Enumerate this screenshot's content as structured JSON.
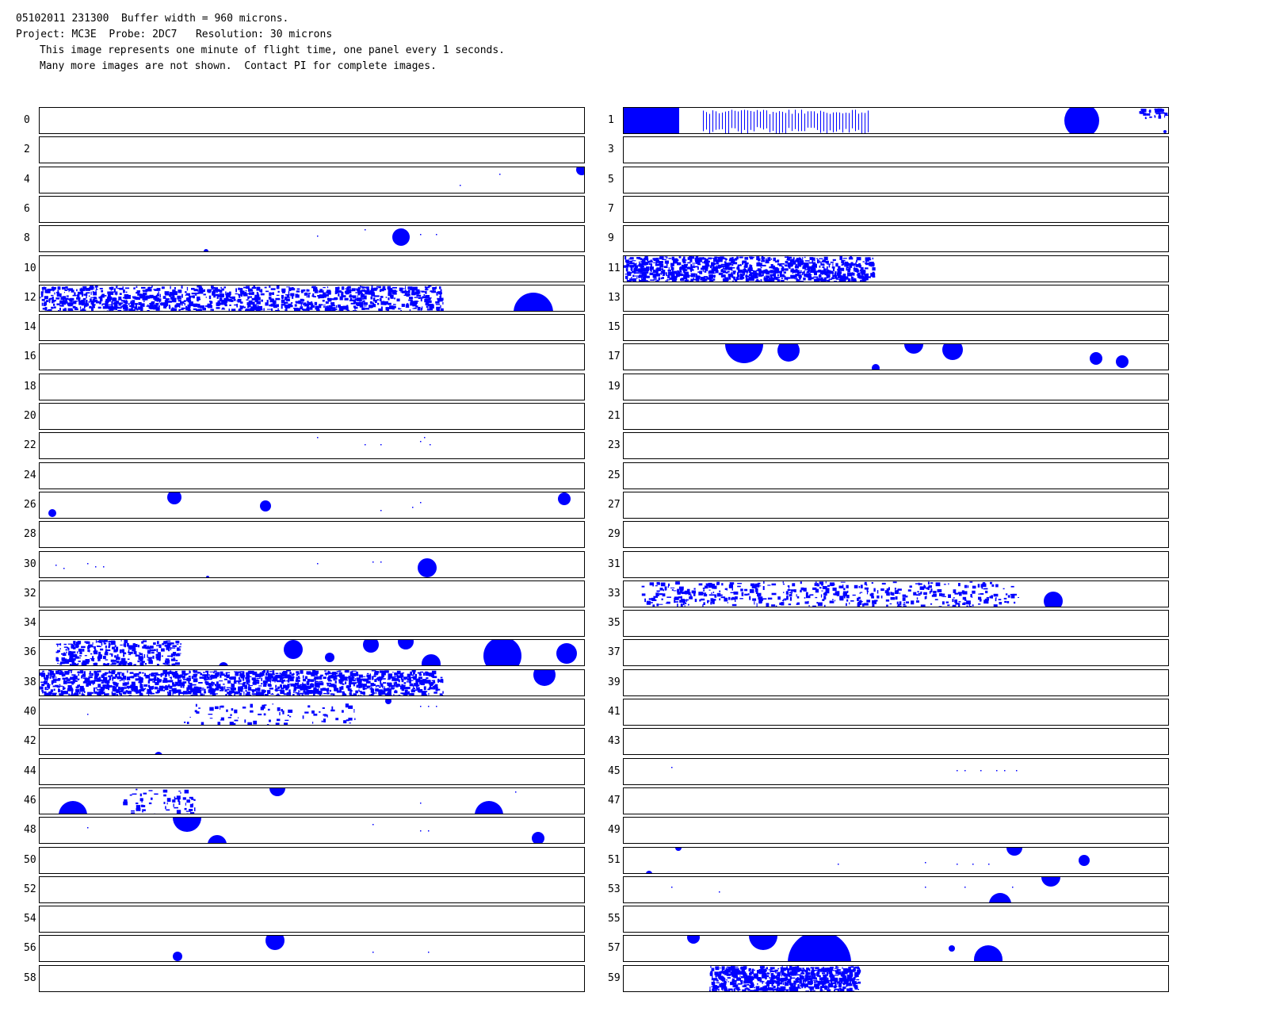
{
  "header": {
    "line1": "05102011 231300  Buffer width = 960 microns.",
    "line2": "Project: MC3E  Probe: 2DC7   Resolution: 30 microns",
    "line3": "This image represents one minute of flight time, one panel every 1 seconds.",
    "line4": "Many more images are not shown.  Contact PI for complete images."
  },
  "colors": {
    "particle": "#0000ff",
    "border": "#000000",
    "background": "#ffffff"
  },
  "panels": [
    {
      "label": "0",
      "content": "empty"
    },
    {
      "label": "1",
      "content": "particles"
    },
    {
      "label": "2",
      "content": "empty"
    },
    {
      "label": "3",
      "content": "empty"
    },
    {
      "label": "4",
      "content": "particles"
    },
    {
      "label": "5",
      "content": "empty"
    },
    {
      "label": "6",
      "content": "empty"
    },
    {
      "label": "7",
      "content": "empty"
    },
    {
      "label": "8",
      "content": "particles"
    },
    {
      "label": "9",
      "content": "empty"
    },
    {
      "label": "10",
      "content": "empty"
    },
    {
      "label": "11",
      "content": "particles"
    },
    {
      "label": "12",
      "content": "particles"
    },
    {
      "label": "13",
      "content": "empty"
    },
    {
      "label": "14",
      "content": "empty"
    },
    {
      "label": "15",
      "content": "empty"
    },
    {
      "label": "16",
      "content": "empty"
    },
    {
      "label": "17",
      "content": "particles"
    },
    {
      "label": "18",
      "content": "empty"
    },
    {
      "label": "19",
      "content": "empty"
    },
    {
      "label": "20",
      "content": "empty"
    },
    {
      "label": "21",
      "content": "empty"
    },
    {
      "label": "22",
      "content": "particles"
    },
    {
      "label": "23",
      "content": "empty"
    },
    {
      "label": "24",
      "content": "empty"
    },
    {
      "label": "25",
      "content": "empty"
    },
    {
      "label": "26",
      "content": "particles"
    },
    {
      "label": "27",
      "content": "empty"
    },
    {
      "label": "28",
      "content": "empty"
    },
    {
      "label": "29",
      "content": "empty"
    },
    {
      "label": "30",
      "content": "particles"
    },
    {
      "label": "31",
      "content": "empty"
    },
    {
      "label": "32",
      "content": "empty"
    },
    {
      "label": "33",
      "content": "particles"
    },
    {
      "label": "34",
      "content": "empty"
    },
    {
      "label": "35",
      "content": "empty"
    },
    {
      "label": "36",
      "content": "particles"
    },
    {
      "label": "37",
      "content": "empty"
    },
    {
      "label": "38",
      "content": "particles"
    },
    {
      "label": "39",
      "content": "empty"
    },
    {
      "label": "40",
      "content": "particles"
    },
    {
      "label": "41",
      "content": "empty"
    },
    {
      "label": "42",
      "content": "particles"
    },
    {
      "label": "43",
      "content": "empty"
    },
    {
      "label": "44",
      "content": "empty"
    },
    {
      "label": "45",
      "content": "particles"
    },
    {
      "label": "46",
      "content": "particles"
    },
    {
      "label": "47",
      "content": "empty"
    },
    {
      "label": "48",
      "content": "particles"
    },
    {
      "label": "49",
      "content": "empty"
    },
    {
      "label": "50",
      "content": "empty"
    },
    {
      "label": "51",
      "content": "particles"
    },
    {
      "label": "52",
      "content": "empty"
    },
    {
      "label": "53",
      "content": "particles"
    },
    {
      "label": "54",
      "content": "empty"
    },
    {
      "label": "55",
      "content": "empty"
    },
    {
      "label": "56",
      "content": "particles"
    },
    {
      "label": "57",
      "content": "particles"
    },
    {
      "label": "58",
      "content": "empty"
    },
    {
      "label": "59",
      "content": "particles"
    }
  ]
}
